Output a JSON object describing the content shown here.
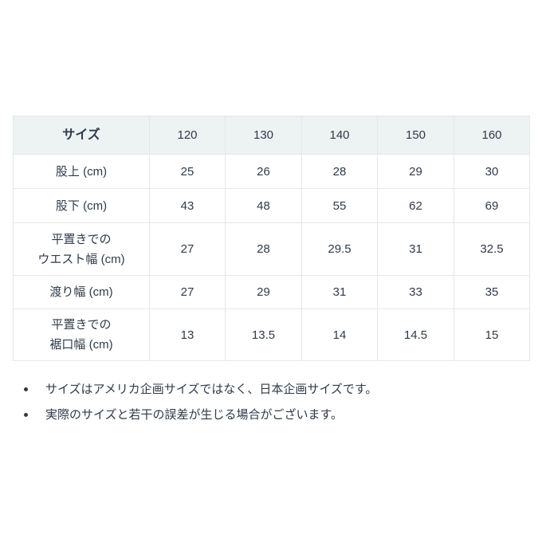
{
  "colors": {
    "background": "#ffffff",
    "text": "#2f3b4a",
    "table_header_bg": "#edf2f3",
    "table_border": "#e3e8ea"
  },
  "size_table": {
    "columns": [
      "サイズ",
      "120",
      "130",
      "140",
      "150",
      "160"
    ],
    "rows": [
      {
        "label_lines": [
          "股上 (cm)"
        ],
        "values": [
          "25",
          "26",
          "28",
          "29",
          "30"
        ]
      },
      {
        "label_lines": [
          "股下 (cm)"
        ],
        "values": [
          "43",
          "48",
          "55",
          "62",
          "69"
        ]
      },
      {
        "label_lines": [
          "平置きでの",
          "ウエスト幅 (cm)"
        ],
        "values": [
          "27",
          "28",
          "29.5",
          "31",
          "32.5"
        ]
      },
      {
        "label_lines": [
          "渡り幅 (cm)"
        ],
        "values": [
          "27",
          "29",
          "31",
          "33",
          "35"
        ]
      },
      {
        "label_lines": [
          "平置きでの",
          "裾口幅 (cm)"
        ],
        "values": [
          "13",
          "13.5",
          "14",
          "14.5",
          "15"
        ]
      }
    ]
  },
  "notes": {
    "items": [
      "サイズはアメリカ企画サイズではなく、日本企画サイズです。",
      "実際のサイズと若干の誤差が生じる場合がございます。"
    ]
  }
}
